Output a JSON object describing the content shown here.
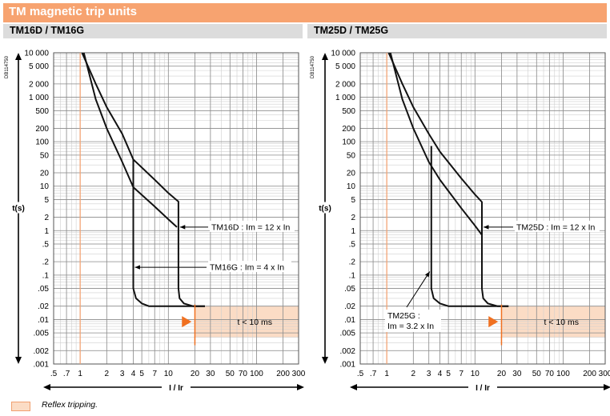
{
  "header": {
    "title": "TM magnetic trip units"
  },
  "legend": {
    "label": "Reflex tripping."
  },
  "colors": {
    "accent": "#f7a370",
    "reflex_fill": "#fbdcc5",
    "reflex_marker": "#f07020",
    "curve": "#111111"
  },
  "chart_data": [
    {
      "type": "line",
      "title": "TM16D / TM16G",
      "code": "DB114750",
      "xlabel": "I / Ir",
      "ylabel": "t(s)",
      "x_scale": "log",
      "y_scale": "log",
      "xlim": [
        0.5,
        300
      ],
      "ylim": [
        0.001,
        10000
      ],
      "grid": true,
      "x_ticks": [
        0.5,
        0.7,
        1,
        2,
        3,
        4,
        5,
        7,
        10,
        20,
        30,
        50,
        70,
        100,
        200,
        300
      ],
      "x_tick_labels": [
        ".5",
        ".7",
        "1",
        "2",
        "3",
        "4",
        "5",
        "7",
        "10",
        "20",
        "30",
        "50",
        "70",
        "100",
        "200",
        "300"
      ],
      "y_ticks": [
        10000,
        5000,
        2000,
        1000,
        500,
        200,
        100,
        50,
        20,
        10,
        5,
        2,
        1,
        0.5,
        0.2,
        0.1,
        0.05,
        0.02,
        0.01,
        0.005,
        0.002,
        0.001
      ],
      "y_tick_labels": [
        "10 000",
        "5 000",
        "2 000",
        "1 000",
        "500",
        "200",
        "100",
        "50",
        "20",
        "10",
        "5",
        "2",
        "1",
        ".5",
        ".2",
        ".1",
        ".05",
        ".02",
        ".01",
        ".005",
        ".002",
        ".001"
      ],
      "series": [
        {
          "values": [
            [
              1.05,
              10000
            ],
            [
              1.5,
              2000
            ],
            [
              2,
              600
            ],
            [
              3,
              150
            ],
            [
              4,
              40
            ],
            [
              7,
              14
            ],
            [
              10,
              7
            ],
            [
              13,
              4.5
            ],
            [
              13,
              0.05
            ],
            [
              13.4,
              0.03
            ],
            [
              15,
              0.023
            ],
            [
              19,
              0.02
            ],
            [
              26,
              0.02
            ]
          ]
        },
        {
          "values": [
            [
              1.1,
              10000
            ],
            [
              1.5,
              900
            ],
            [
              2,
              200
            ],
            [
              3,
              35
            ],
            [
              4,
              9.5
            ],
            [
              7,
              3.5
            ],
            [
              10,
              1.8
            ],
            [
              12.5,
              1.2
            ]
          ]
        },
        {
          "values": [
            [
              4,
              40
            ],
            [
              4,
              0.05
            ],
            [
              4.3,
              0.03
            ],
            [
              5,
              0.023
            ],
            [
              6,
              0.02
            ],
            [
              26,
              0.02
            ]
          ]
        }
      ],
      "annotations": [
        {
          "text": "TM16D : Im = 12 x In",
          "target": [
            13,
            1.2
          ]
        },
        {
          "text": "TM16G : Im = 4 x In",
          "target": [
            4,
            0.15
          ]
        }
      ],
      "reflex": {
        "text": "t < 10 ms",
        "x_from": 20,
        "x_to": 300,
        "y_from": 0.004,
        "y_to": 0.02,
        "marker_x": 16.5
      }
    },
    {
      "type": "line",
      "title": "TM25D / TM25G",
      "code": "DB114750",
      "xlabel": "I / Ir",
      "ylabel": "t(s)",
      "x_scale": "log",
      "y_scale": "log",
      "xlim": [
        0.5,
        300
      ],
      "ylim": [
        0.001,
        10000
      ],
      "grid": true,
      "x_ticks": [
        0.5,
        0.7,
        1,
        2,
        3,
        4,
        5,
        7,
        10,
        20,
        30,
        50,
        70,
        100,
        200,
        300
      ],
      "x_tick_labels": [
        ".5",
        ".7",
        "1",
        "2",
        "3",
        "4",
        "5",
        "7",
        "10",
        "20",
        "30",
        "50",
        "70",
        "100",
        "200",
        "300"
      ],
      "y_ticks": [
        10000,
        5000,
        2000,
        1000,
        500,
        200,
        100,
        50,
        20,
        10,
        5,
        2,
        1,
        0.5,
        0.2,
        0.1,
        0.05,
        0.02,
        0.01,
        0.005,
        0.002,
        0.001
      ],
      "y_tick_labels": [
        "10 000",
        "5 000",
        "2 000",
        "1 000",
        "500",
        "200",
        "100",
        "50",
        "20",
        "10",
        "5",
        "2",
        "1",
        ".5",
        ".2",
        ".1",
        ".05",
        ".02",
        ".01",
        ".005",
        ".002",
        ".001"
      ],
      "series": [
        {
          "values": [
            [
              1.05,
              10000
            ],
            [
              1.5,
              2000
            ],
            [
              2,
              600
            ],
            [
              3,
              150
            ],
            [
              4,
              60
            ],
            [
              7,
              15
            ],
            [
              10,
              6.5
            ],
            [
              12,
              4.4
            ],
            [
              12,
              0.05
            ],
            [
              12.4,
              0.03
            ],
            [
              14,
              0.023
            ],
            [
              18,
              0.02
            ],
            [
              24,
              0.02
            ]
          ]
        },
        {
          "values": [
            [
              1.1,
              10000
            ],
            [
              1.5,
              900
            ],
            [
              2,
              200
            ],
            [
              3,
              35
            ],
            [
              4,
              14
            ],
            [
              7,
              3.2
            ],
            [
              10,
              1.3
            ],
            [
              12,
              0.8
            ]
          ]
        },
        {
          "values": [
            [
              3.2,
              80
            ],
            [
              3.2,
              0.05
            ],
            [
              3.4,
              0.03
            ],
            [
              4,
              0.023
            ],
            [
              5,
              0.02
            ],
            [
              24,
              0.02
            ]
          ]
        }
      ],
      "annotations": [
        {
          "text": "TM25D : Im = 12 x In",
          "target": [
            12,
            1.2
          ]
        },
        {
          "text": "TM25G :",
          "target": [
            3.2,
            0.12
          ]
        },
        {
          "text": "Im = 3.2 x In",
          "target": [
            3.2,
            0.12
          ]
        }
      ],
      "reflex": {
        "text": "t < 10 ms",
        "x_from": 20,
        "x_to": 300,
        "y_from": 0.004,
        "y_to": 0.02,
        "marker_x": 16.5
      }
    }
  ]
}
